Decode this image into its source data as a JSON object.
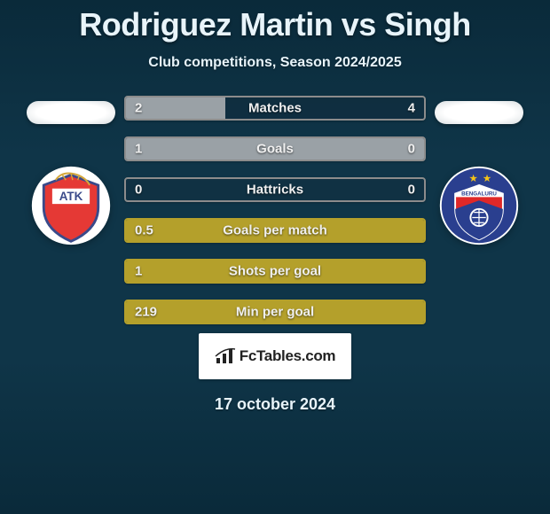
{
  "title": "Rodriguez Martin vs Singh",
  "subtitle": "Club competitions, Season 2024/2025",
  "date": "17 october 2024",
  "logo_text": "FcTables.com",
  "colors": {
    "highlight": "#b4a02b",
    "border_muted": "#8c8c8c",
    "fill_muted": "#9aa1a6",
    "text": "#f0f0f0"
  },
  "team_left": {
    "name": "ATK",
    "badge_shape": "shield",
    "badge_colors": [
      "#e53935",
      "#ffffff",
      "#3a4a8a"
    ],
    "badge_label": "ATK"
  },
  "team_right": {
    "name": "Bengaluru",
    "badge_shape": "shield-round",
    "badge_colors": [
      "#2a3f8f",
      "#e02828",
      "#ffffff"
    ],
    "badge_stars": 2,
    "badge_label": "BENGALURU"
  },
  "rows": [
    {
      "label": "Matches",
      "left": "2",
      "right": "4",
      "fill_pct": 33.3,
      "highlighted": false
    },
    {
      "label": "Goals",
      "left": "1",
      "right": "0",
      "fill_pct": 100,
      "highlighted": false
    },
    {
      "label": "Hattricks",
      "left": "0",
      "right": "0",
      "fill_pct": 0,
      "highlighted": false
    },
    {
      "label": "Goals per match",
      "left": "0.5",
      "right": "",
      "fill_pct": 100,
      "highlighted": true
    },
    {
      "label": "Shots per goal",
      "left": "1",
      "right": "",
      "fill_pct": 100,
      "highlighted": true
    },
    {
      "label": "Min per goal",
      "left": "219",
      "right": "",
      "fill_pct": 100,
      "highlighted": true
    }
  ],
  "bar_style": {
    "height": 28,
    "gap": 18,
    "border_radius": 4,
    "font_size": 15
  }
}
